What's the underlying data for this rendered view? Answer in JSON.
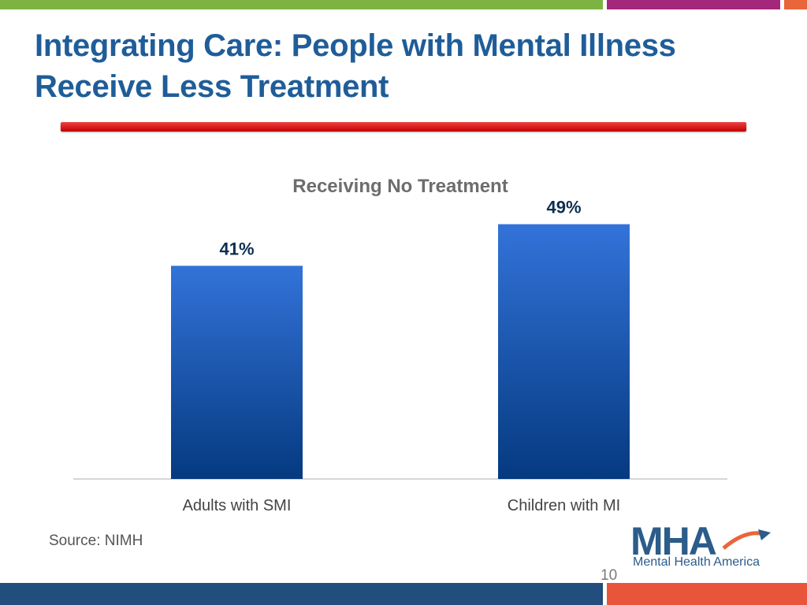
{
  "slide": {
    "title_lines": [
      "Integrating Care: People with Mental Illness",
      "Receive Less Treatment"
    ],
    "source": "Source: NIMH",
    "page_number": "10",
    "logo_text": "MHA",
    "logo_tagline": "Mental Health America"
  },
  "colors": {
    "title": "#1f5d99",
    "bar_top": "#3373d9",
    "bar_bottom": "#053a80",
    "rule": "#d81818",
    "top_green": "#7cb342",
    "top_purple": "#a3287c",
    "accent_orange": "#e9663a",
    "bottom_blue": "#224e7d"
  },
  "chart_data": {
    "type": "bar",
    "title": "Receiving No Treatment",
    "categories": [
      "Adults with SMI",
      "Children with MI"
    ],
    "values": [
      41,
      49
    ],
    "data_labels": [
      "41%",
      "49%"
    ],
    "ylim": [
      0,
      50
    ],
    "grid": false,
    "legend": "none"
  }
}
